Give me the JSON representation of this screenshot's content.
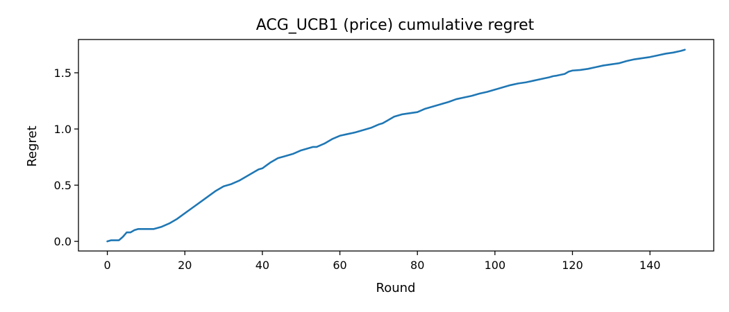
{
  "chart_data": {
    "type": "line",
    "title": "ACG_UCB1 (price) cumulative regret",
    "xlabel": "Round",
    "ylabel": "Regret",
    "xlim": [
      -7.45,
      156.45
    ],
    "ylim": [
      -0.0855,
      1.796
    ],
    "xticks": [
      0,
      20,
      40,
      60,
      80,
      100,
      120,
      140
    ],
    "yticks": [
      0.0,
      0.5,
      1.0,
      1.5
    ],
    "xtick_labels": [
      "0",
      "20",
      "40",
      "60",
      "80",
      "100",
      "120",
      "140"
    ],
    "ytick_labels": [
      "0.0",
      "0.5",
      "1.0",
      "1.5"
    ],
    "grid": false,
    "series": [
      {
        "color": "#1f77b4",
        "x": [
          0,
          1,
          2,
          3,
          4,
          5,
          6,
          7,
          8,
          10,
          12,
          14,
          16,
          18,
          20,
          22,
          24,
          26,
          28,
          30,
          32,
          34,
          36,
          38,
          39,
          40,
          42,
          44,
          46,
          48,
          50,
          52,
          53,
          54,
          56,
          58,
          60,
          62,
          64,
          66,
          68,
          70,
          71,
          72,
          74,
          76,
          78,
          80,
          82,
          84,
          86,
          88,
          90,
          92,
          94,
          96,
          98,
          100,
          102,
          104,
          106,
          108,
          110,
          112,
          114,
          115,
          116,
          118,
          119,
          120,
          122,
          124,
          126,
          128,
          130,
          132,
          134,
          136,
          138,
          140,
          142,
          144,
          146,
          148,
          149
        ],
        "y": [
          0.0,
          0.01,
          0.01,
          0.01,
          0.04,
          0.08,
          0.08,
          0.1,
          0.11,
          0.11,
          0.11,
          0.13,
          0.16,
          0.2,
          0.25,
          0.3,
          0.35,
          0.4,
          0.45,
          0.49,
          0.51,
          0.54,
          0.58,
          0.62,
          0.64,
          0.65,
          0.7,
          0.74,
          0.76,
          0.78,
          0.81,
          0.83,
          0.84,
          0.84,
          0.87,
          0.91,
          0.94,
          0.955,
          0.97,
          0.99,
          1.01,
          1.04,
          1.05,
          1.07,
          1.11,
          1.13,
          1.14,
          1.15,
          1.18,
          1.2,
          1.22,
          1.24,
          1.265,
          1.28,
          1.295,
          1.315,
          1.33,
          1.35,
          1.37,
          1.39,
          1.405,
          1.415,
          1.43,
          1.445,
          1.46,
          1.47,
          1.475,
          1.49,
          1.51,
          1.52,
          1.525,
          1.535,
          1.55,
          1.565,
          1.575,
          1.585,
          1.605,
          1.62,
          1.63,
          1.64,
          1.655,
          1.67,
          1.68,
          1.695,
          1.705
        ]
      }
    ]
  }
}
